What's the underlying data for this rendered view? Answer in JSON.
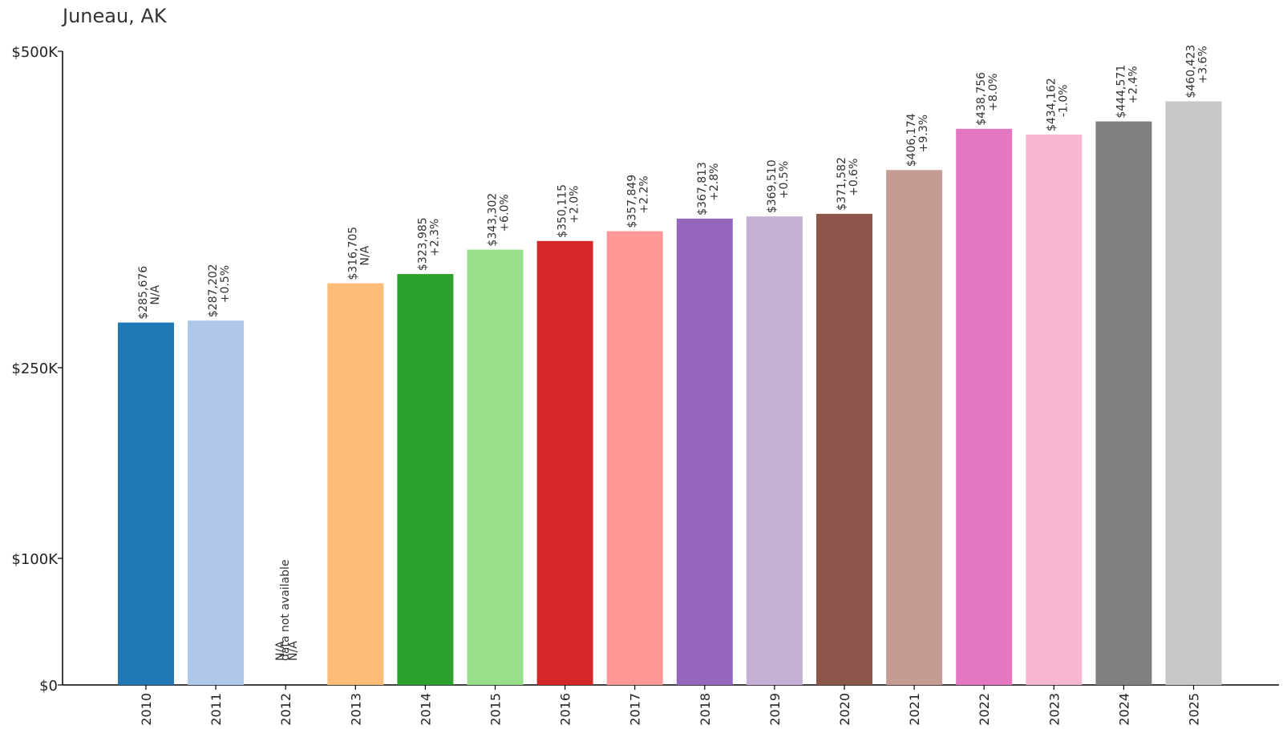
{
  "chart_data": {
    "type": "bar",
    "title": "Juneau, AK",
    "xlabel": "",
    "ylabel": "",
    "ylim": [
      0,
      500000
    ],
    "yticks": [
      {
        "value": 0,
        "label": "$0"
      },
      {
        "value": 100000,
        "label": "$100K"
      },
      {
        "value": 250000,
        "label": "$250K"
      },
      {
        "value": 500000,
        "label": "$500K"
      }
    ],
    "categories": [
      "2010",
      "2011",
      "2012",
      "2013",
      "2014",
      "2015",
      "2016",
      "2017",
      "2018",
      "2019",
      "2020",
      "2021",
      "2022",
      "2023",
      "2024",
      "2025"
    ],
    "values": [
      285676,
      287202,
      null,
      316705,
      323985,
      343302,
      350115,
      357849,
      367813,
      369510,
      371582,
      406174,
      438756,
      434162,
      444571,
      460423
    ],
    "value_labels": [
      "$285,676",
      "$287,202",
      "N/A",
      "$316,705",
      "$323,985",
      "$343,302",
      "$350,115",
      "$357,849",
      "$367,813",
      "$369,510",
      "$371,582",
      "$406,174",
      "$438,756",
      "$434,162",
      "$444,571",
      "$460,423"
    ],
    "change_labels": [
      "N/A",
      "+0.5%",
      "N/A",
      "N/A",
      "+2.3%",
      "+6.0%",
      "+2.0%",
      "+2.2%",
      "+2.8%",
      "+0.5%",
      "+0.6%",
      "+9.3%",
      "+8.0%",
      "-1.0%",
      "+2.4%",
      "+3.6%"
    ],
    "missing_note": "data not available",
    "colors": [
      "#1f77b4",
      "#aec7e8",
      "#ff7f0e",
      "#ffbb78",
      "#2ca02c",
      "#98df8a",
      "#d62728",
      "#ff9896",
      "#9467bd",
      "#c5b0d5",
      "#8c564b",
      "#c49c94",
      "#e377c2",
      "#f7b6d2",
      "#7f7f7f",
      "#c7c7c7"
    ]
  }
}
